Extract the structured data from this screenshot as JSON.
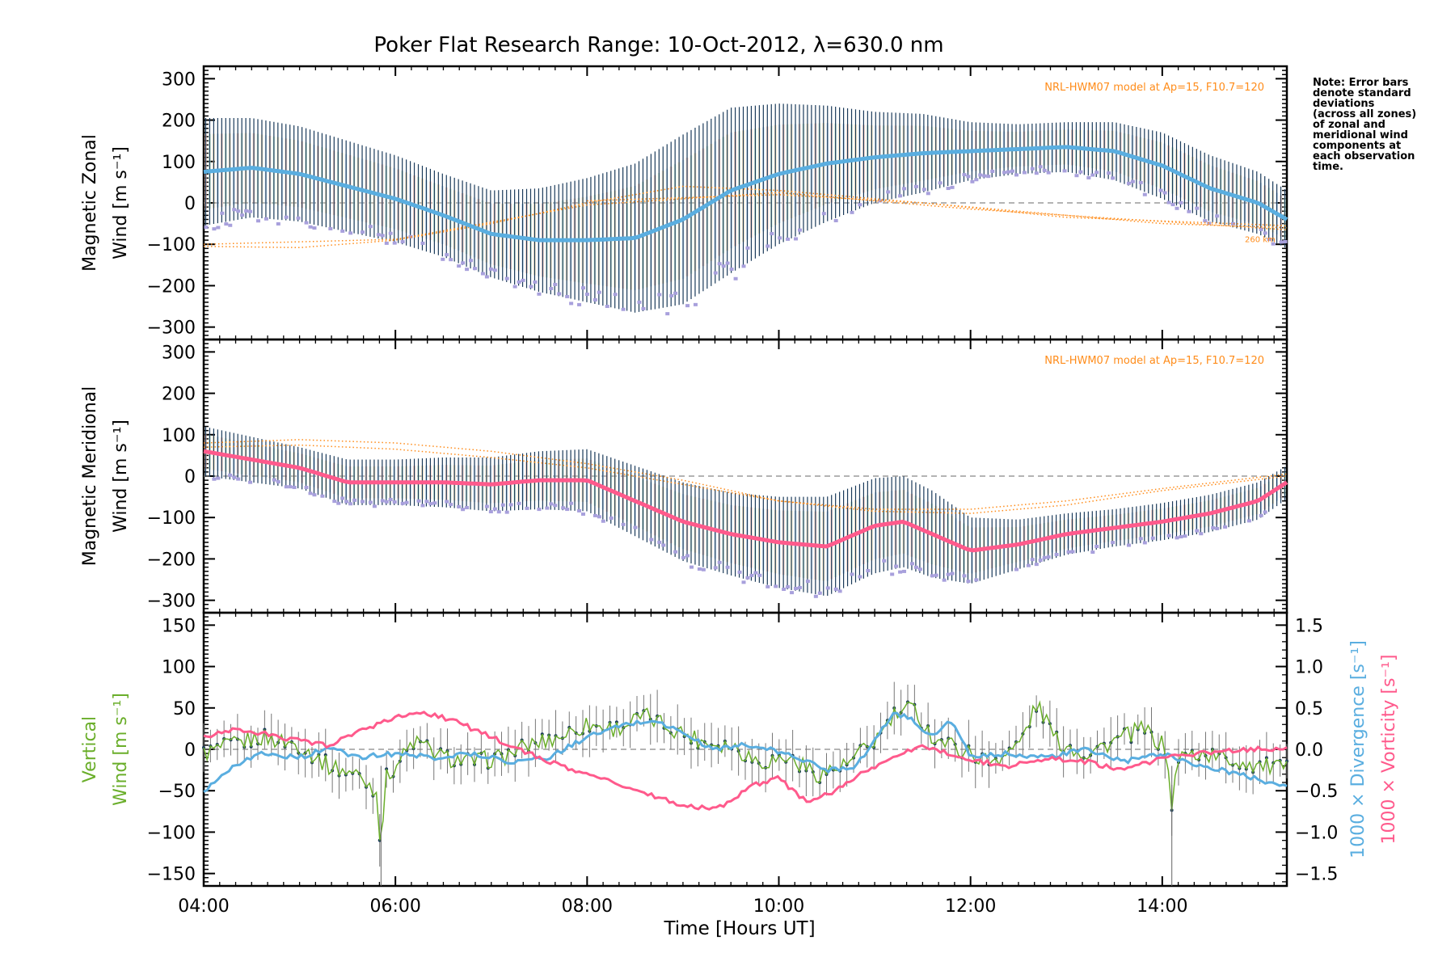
{
  "figure": {
    "title": "Poker Flat Research Range: 10-Oct-2012, λ=630.0 nm",
    "xlabel": "Time [Hours UT]",
    "note_lines": [
      "Note: Error bars",
      "denote standard",
      "deviations",
      "(across all zones)",
      "of zonal and",
      "meridional wind",
      "components at",
      "each observation",
      "time."
    ]
  },
  "colors": {
    "zonal_mean": "#5aaee0",
    "meridional_mean": "#ff5a8c",
    "vertical": "#6aae2a",
    "divergence": "#5aaee0",
    "vorticity": "#ff5a8c",
    "model": "#ff8c1a",
    "errorbar": "#1a3a5a",
    "zone_scatter": "#a8a0dc",
    "zero_line": "#888888"
  },
  "chart_data": [
    {
      "type": "line",
      "panel": "zonal",
      "ylabel_lines": [
        "Magnetic Zonal",
        "Wind [m s⁻¹]"
      ],
      "ylim": [
        -330,
        330
      ],
      "yticks": [
        -300,
        -200,
        -100,
        0,
        100,
        200,
        300
      ],
      "xlim": [
        4.0,
        15.3
      ],
      "xticks": [
        "04:00",
        "06:00",
        "08:00",
        "10:00",
        "12:00",
        "14:00"
      ],
      "model_label": "NRL-HWM07 model at Ap=15, F10.7=120",
      "model_alt_label": "260 km",
      "series": [
        {
          "x": [
            4.0,
            4.5,
            5.0,
            5.5,
            6.0,
            6.5,
            7.0,
            7.5,
            8.0,
            8.5,
            9.0,
            9.5,
            10.0,
            10.5,
            11.0,
            11.5,
            12.0,
            12.5,
            13.0,
            13.5,
            14.0,
            14.5,
            15.0,
            15.3
          ],
          "y": [
            75,
            85,
            70,
            40,
            10,
            -30,
            -75,
            -90,
            -90,
            -85,
            -40,
            30,
            70,
            95,
            110,
            120,
            125,
            130,
            135,
            125,
            90,
            35,
            0,
            -40
          ],
          "spread": [
            130,
            120,
            115,
            110,
            105,
            100,
            105,
            125,
            150,
            180,
            205,
            200,
            170,
            140,
            110,
            95,
            70,
            60,
            60,
            70,
            80,
            80,
            75,
            70
          ]
        }
      ],
      "model_curves": [
        {
          "x": [
            4.0,
            5.0,
            6.0,
            7.0,
            8.0,
            9.0,
            10.0,
            11.0,
            12.0,
            13.0,
            14.0,
            15.3
          ],
          "y": [
            -105,
            -108,
            -90,
            -50,
            0,
            40,
            30,
            10,
            -10,
            -30,
            -45,
            -65
          ]
        },
        {
          "x": [
            4.0,
            6.0,
            8.0,
            10.0,
            12.0,
            13.0,
            14.0,
            15.3
          ],
          "y": [
            -100,
            -88,
            -5,
            25,
            -15,
            -30,
            -50,
            -60
          ]
        },
        {
          "x": [
            8.0,
            10.0,
            11.5,
            13.0,
            15.3
          ],
          "y": [
            5,
            20,
            0,
            -35,
            -55
          ]
        }
      ]
    },
    {
      "type": "line",
      "panel": "meridional",
      "ylabel_lines": [
        "Magnetic Meridional",
        "Wind [m s⁻¹]"
      ],
      "ylim": [
        -330,
        330
      ],
      "yticks": [
        -300,
        -200,
        -100,
        0,
        100,
        200,
        300
      ],
      "xlim": [
        4.0,
        15.3
      ],
      "model_label": "NRL-HWM07 model at Ap=15, F10.7=120",
      "series": [
        {
          "x": [
            4.0,
            4.5,
            5.0,
            5.5,
            6.0,
            6.5,
            7.0,
            7.5,
            8.0,
            8.5,
            9.0,
            9.5,
            10.0,
            10.5,
            11.0,
            11.3,
            11.6,
            12.0,
            12.5,
            13.0,
            13.5,
            14.0,
            14.5,
            15.0,
            15.3
          ],
          "y": [
            60,
            40,
            20,
            -15,
            -15,
            -15,
            -20,
            -10,
            -10,
            -60,
            -110,
            -140,
            -160,
            -170,
            -120,
            -110,
            -140,
            -180,
            -165,
            -140,
            -125,
            -110,
            -90,
            -60,
            -15
          ],
          "spread": [
            60,
            55,
            50,
            55,
            55,
            60,
            65,
            70,
            75,
            85,
            95,
            100,
            110,
            120,
            115,
            110,
            105,
            80,
            60,
            50,
            45,
            45,
            45,
            45,
            40
          ]
        }
      ],
      "model_curves": [
        {
          "x": [
            4.0,
            5.0,
            6.0,
            7.0,
            8.0,
            9.0,
            10.0,
            11.0,
            12.0,
            13.0,
            14.0,
            15.3
          ],
          "y": [
            80,
            88,
            80,
            60,
            30,
            -10,
            -60,
            -85,
            -90,
            -70,
            -35,
            0
          ]
        },
        {
          "x": [
            4.0,
            5.0,
            6.0,
            7.0,
            8.0,
            9.0,
            10.0,
            11.0,
            12.0,
            13.0,
            14.0,
            15.3
          ],
          "y": [
            70,
            75,
            65,
            45,
            20,
            -20,
            -60,
            -80,
            -80,
            -60,
            -30,
            5
          ]
        }
      ]
    },
    {
      "type": "line",
      "panel": "vertical",
      "ylabel_lines": [
        "Vertical",
        "Wind [m s⁻¹]"
      ],
      "ylim": [
        -165,
        165
      ],
      "yticks": [
        -150,
        -100,
        -50,
        0,
        50,
        100,
        150
      ],
      "y2label_blue": "1000 × Divergence [s⁻¹]",
      "y2label_pink": "1000 × Vorticity [s⁻¹]",
      "y2lim": [
        -1.65,
        1.65
      ],
      "y2ticks": [
        "−1.5",
        "−1.0",
        "−0.5",
        "0.0",
        "0.5",
        "1.0",
        "1.5"
      ],
      "y2tickvalues": [
        -1.5,
        -1.0,
        -0.5,
        0.0,
        0.5,
        1.0,
        1.5
      ],
      "xlim": [
        4.0,
        15.3
      ],
      "series": [
        {
          "name": "Vertical",
          "x": [
            4.0,
            4.3,
            4.6,
            5.0,
            5.3,
            5.6,
            5.8,
            5.85,
            5.9,
            6.2,
            6.5,
            6.8,
            7.1,
            7.4,
            7.7,
            8.0,
            8.3,
            8.6,
            8.9,
            9.2,
            9.5,
            9.8,
            10.1,
            10.4,
            10.7,
            11.0,
            11.2,
            11.4,
            11.6,
            11.9,
            12.2,
            12.5,
            12.7,
            12.9,
            13.2,
            13.5,
            13.8,
            14.05,
            14.1,
            14.15,
            14.4,
            14.8,
            15.3
          ],
          "y": [
            -5,
            5,
            15,
            5,
            -20,
            -30,
            -50,
            -118,
            -35,
            10,
            -10,
            -15,
            -10,
            5,
            15,
            30,
            25,
            40,
            25,
            10,
            5,
            -15,
            -10,
            -30,
            -20,
            10,
            40,
            50,
            15,
            0,
            -15,
            5,
            55,
            10,
            -5,
            10,
            25,
            0,
            -80,
            -10,
            -5,
            -15,
            -25
          ]
        },
        {
          "name": "1000 × Divergence",
          "x": [
            4.0,
            4.3,
            4.6,
            5.0,
            5.3,
            5.6,
            6.0,
            6.4,
            6.8,
            7.2,
            7.6,
            8.0,
            8.4,
            8.7,
            9.0,
            9.3,
            9.6,
            9.9,
            10.2,
            10.5,
            10.8,
            11.0,
            11.2,
            11.4,
            11.6,
            11.8,
            12.0,
            12.4,
            12.8,
            13.2,
            13.6,
            14.0,
            14.4,
            14.8,
            15.3
          ],
          "y": [
            -0.5,
            -0.2,
            -0.05,
            -0.1,
            0.02,
            -0.1,
            -0.05,
            -0.1,
            -0.05,
            -0.15,
            -0.1,
            0.15,
            0.3,
            0.35,
            0.2,
            0.0,
            0.05,
            0.0,
            -0.1,
            -0.25,
            -0.2,
            0.1,
            0.45,
            0.35,
            0.15,
            0.35,
            -0.1,
            -0.05,
            -0.1,
            0.0,
            -0.15,
            -0.05,
            -0.2,
            -0.3,
            -0.45
          ]
        },
        {
          "name": "1000 × Vorticity",
          "x": [
            4.0,
            4.3,
            4.6,
            5.0,
            5.3,
            5.6,
            6.0,
            6.3,
            6.6,
            7.0,
            7.3,
            7.6,
            8.0,
            8.4,
            8.8,
            9.1,
            9.4,
            9.7,
            10.0,
            10.3,
            10.6,
            10.9,
            11.2,
            11.5,
            11.8,
            12.1,
            12.4,
            12.8,
            13.2,
            13.6,
            14.0,
            14.4,
            14.8,
            15.3
          ],
          "y": [
            0.15,
            0.25,
            0.2,
            0.1,
            0.05,
            0.2,
            0.4,
            0.45,
            0.35,
            0.15,
            0.0,
            -0.15,
            -0.3,
            -0.45,
            -0.6,
            -0.7,
            -0.7,
            -0.45,
            -0.35,
            -0.65,
            -0.5,
            -0.25,
            -0.1,
            0.05,
            -0.05,
            -0.15,
            -0.2,
            -0.1,
            -0.15,
            -0.25,
            -0.1,
            -0.05,
            0.0,
            0.0
          ]
        }
      ]
    }
  ]
}
